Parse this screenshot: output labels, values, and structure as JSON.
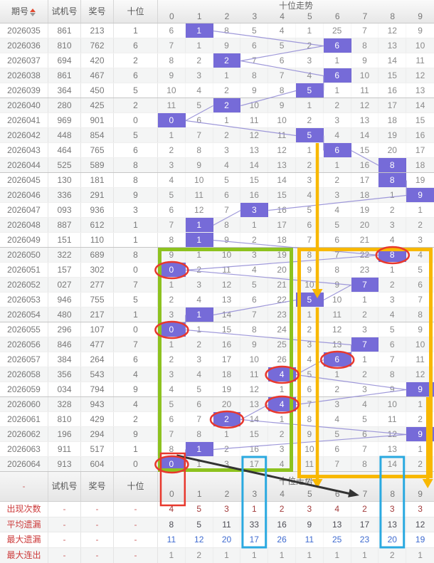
{
  "header": {
    "col_period": "期号",
    "col_test": "试机号",
    "col_prize": "奖号",
    "col_tens": "十位",
    "trend_title": "十位走势",
    "trend_cols": [
      "0",
      "1",
      "2",
      "3",
      "4",
      "5",
      "6",
      "7",
      "8",
      "9"
    ]
  },
  "summary_header": {
    "corner": "-",
    "col_test": "试机号",
    "col_prize": "奖号",
    "col_tens": "十位",
    "trend_title": "十位走势"
  },
  "chart_data": {
    "type": "table",
    "title": "十位走势",
    "columns": [
      "期号",
      "试机号",
      "奖号",
      "十位",
      "0",
      "1",
      "2",
      "3",
      "4",
      "5",
      "6",
      "7",
      "8",
      "9"
    ],
    "rows": [
      {
        "period": "2026035",
        "test": "861",
        "prize": "213",
        "tens": 1,
        "cells": [
          6,
          1,
          8,
          5,
          4,
          1,
          25,
          7,
          12,
          9
        ]
      },
      {
        "period": "2026036",
        "test": "810",
        "prize": "762",
        "tens": 6,
        "cells": [
          7,
          1,
          9,
          6,
          5,
          2,
          6,
          8,
          13,
          10
        ]
      },
      {
        "period": "2026037",
        "test": "694",
        "prize": "420",
        "tens": 2,
        "cells": [
          8,
          2,
          2,
          7,
          6,
          3,
          1,
          9,
          14,
          11
        ]
      },
      {
        "period": "2026038",
        "test": "861",
        "prize": "467",
        "tens": 6,
        "cells": [
          9,
          3,
          1,
          8,
          7,
          4,
          6,
          10,
          15,
          12
        ]
      },
      {
        "period": "2026039",
        "test": "364",
        "prize": "450",
        "tens": 5,
        "cells": [
          10,
          4,
          2,
          9,
          8,
          5,
          1,
          11,
          16,
          13
        ]
      },
      {
        "period": "2026040",
        "test": "280",
        "prize": "425",
        "tens": 2,
        "cells": [
          11,
          5,
          2,
          10,
          9,
          1,
          2,
          12,
          17,
          14
        ]
      },
      {
        "period": "2026041",
        "test": "969",
        "prize": "901",
        "tens": 0,
        "cells": [
          0,
          6,
          1,
          11,
          10,
          2,
          3,
          13,
          18,
          15
        ]
      },
      {
        "period": "2026042",
        "test": "448",
        "prize": "854",
        "tens": 5,
        "cells": [
          1,
          7,
          2,
          12,
          11,
          5,
          4,
          14,
          19,
          16
        ]
      },
      {
        "period": "2026043",
        "test": "464",
        "prize": "765",
        "tens": 6,
        "cells": [
          2,
          8,
          3,
          13,
          12,
          1,
          6,
          15,
          20,
          17
        ]
      },
      {
        "period": "2026044",
        "test": "525",
        "prize": "589",
        "tens": 8,
        "cells": [
          3,
          9,
          4,
          14,
          13,
          2,
          1,
          16,
          8,
          18
        ]
      },
      {
        "period": "2026045",
        "test": "130",
        "prize": "181",
        "tens": 8,
        "cells": [
          4,
          10,
          5,
          15,
          14,
          3,
          2,
          17,
          8,
          19
        ]
      },
      {
        "period": "2026046",
        "test": "336",
        "prize": "291",
        "tens": 9,
        "cells": [
          5,
          11,
          6,
          16,
          15,
          4,
          3,
          18,
          1,
          9
        ]
      },
      {
        "period": "2026047",
        "test": "093",
        "prize": "936",
        "tens": 3,
        "cells": [
          6,
          12,
          7,
          3,
          16,
          5,
          4,
          19,
          2,
          1
        ]
      },
      {
        "period": "2026048",
        "test": "887",
        "prize": "612",
        "tens": 1,
        "cells": [
          7,
          1,
          8,
          1,
          17,
          6,
          5,
          20,
          3,
          2
        ]
      },
      {
        "period": "2026049",
        "test": "151",
        "prize": "110",
        "tens": 1,
        "cells": [
          8,
          1,
          9,
          2,
          18,
          7,
          6,
          21,
          4,
          3
        ]
      },
      {
        "period": "2026050",
        "test": "322",
        "prize": "689",
        "tens": 8,
        "cells": [
          9,
          1,
          10,
          3,
          19,
          8,
          7,
          22,
          8,
          4
        ]
      },
      {
        "period": "2026051",
        "test": "157",
        "prize": "302",
        "tens": 0,
        "cells": [
          0,
          2,
          11,
          4,
          20,
          9,
          8,
          23,
          1,
          5
        ]
      },
      {
        "period": "2026052",
        "test": "027",
        "prize": "277",
        "tens": 7,
        "cells": [
          1,
          3,
          12,
          5,
          21,
          10,
          9,
          7,
          2,
          6
        ]
      },
      {
        "period": "2026053",
        "test": "946",
        "prize": "755",
        "tens": 5,
        "cells": [
          2,
          4,
          13,
          6,
          22,
          5,
          10,
          1,
          3,
          7
        ]
      },
      {
        "period": "2026054",
        "test": "480",
        "prize": "217",
        "tens": 1,
        "cells": [
          3,
          1,
          14,
          7,
          23,
          1,
          11,
          2,
          4,
          8
        ]
      },
      {
        "period": "2026055",
        "test": "296",
        "prize": "107",
        "tens": 0,
        "cells": [
          0,
          1,
          15,
          8,
          24,
          2,
          12,
          3,
          5,
          9
        ]
      },
      {
        "period": "2026056",
        "test": "846",
        "prize": "477",
        "tens": 7,
        "cells": [
          1,
          2,
          16,
          9,
          25,
          3,
          13,
          7,
          6,
          10
        ]
      },
      {
        "period": "2026057",
        "test": "384",
        "prize": "264",
        "tens": 6,
        "cells": [
          2,
          3,
          17,
          10,
          26,
          4,
          6,
          1,
          7,
          11
        ]
      },
      {
        "period": "2026058",
        "test": "356",
        "prize": "543",
        "tens": 4,
        "cells": [
          3,
          4,
          18,
          11,
          4,
          5,
          1,
          2,
          8,
          12
        ]
      },
      {
        "period": "2026059",
        "test": "034",
        "prize": "794",
        "tens": 9,
        "cells": [
          4,
          5,
          19,
          12,
          1,
          6,
          2,
          3,
          9,
          9
        ]
      },
      {
        "period": "2026060",
        "test": "328",
        "prize": "943",
        "tens": 4,
        "cells": [
          5,
          6,
          20,
          13,
          4,
          7,
          3,
          4,
          10,
          1
        ]
      },
      {
        "period": "2026061",
        "test": "810",
        "prize": "429",
        "tens": 2,
        "cells": [
          6,
          7,
          2,
          14,
          1,
          8,
          4,
          5,
          11,
          2
        ]
      },
      {
        "period": "2026062",
        "test": "196",
        "prize": "294",
        "tens": 9,
        "cells": [
          7,
          8,
          1,
          15,
          2,
          9,
          5,
          6,
          12,
          9
        ]
      },
      {
        "period": "2026063",
        "test": "911",
        "prize": "517",
        "tens": 1,
        "cells": [
          8,
          1,
          2,
          16,
          3,
          10,
          6,
          7,
          13,
          1
        ]
      },
      {
        "period": "2026064",
        "test": "913",
        "prize": "604",
        "tens": 0,
        "cells": [
          0,
          1,
          3,
          17,
          4,
          11,
          7,
          8,
          14,
          2
        ]
      }
    ],
    "summary_rows": [
      {
        "label": "出现次数",
        "dash": "-",
        "values": [
          4,
          5,
          3,
          1,
          2,
          3,
          4,
          2,
          3,
          3
        ],
        "color": "#a23b3b"
      },
      {
        "label": "平均遗漏",
        "dash": "-",
        "values": [
          8,
          5,
          11,
          33,
          16,
          9,
          13,
          17,
          13,
          12
        ],
        "color": "#4d4d55"
      },
      {
        "label": "最大遗漏",
        "dash": "-",
        "values": [
          11,
          12,
          20,
          17,
          26,
          11,
          25,
          23,
          20,
          19
        ],
        "color": "#3f6bd0"
      },
      {
        "label": "最大连出",
        "dash": "-",
        "values": [
          1,
          2,
          1,
          1,
          1,
          1,
          1,
          1,
          2,
          1
        ],
        "color": "#8a8a8a"
      }
    ]
  },
  "annotations": {
    "colors": {
      "purple_hit": "#766bd8",
      "trend_line": "#958ed6",
      "green": "#8dc21f",
      "gold": "#f8b800",
      "red": "#e8382d",
      "blue": "#2aa9e0",
      "black": "#333333"
    },
    "green_box": {
      "col_start": 0,
      "col_end": 4,
      "row_start": 15,
      "row_end": 29
    },
    "gold_box": {
      "col_start": 5,
      "col_end": 9,
      "row_start": 15,
      "row_end": 29
    },
    "red_circle_cells": [
      [
        15,
        8
      ],
      [
        16,
        0
      ],
      [
        20,
        0
      ],
      [
        22,
        6
      ],
      [
        23,
        4
      ],
      [
        25,
        4
      ],
      [
        26,
        2
      ],
      [
        29,
        0
      ]
    ],
    "red_box_col": 0,
    "blue_box_cols": [
      3,
      8
    ],
    "gold_arrows": [
      {
        "col": 5,
        "from_after_row": 7,
        "tip_at_row": 18
      },
      {
        "col": 5,
        "from_after_row": 18,
        "tip": "summary_header"
      },
      {
        "col": 9,
        "from_after_row": 24,
        "tip": "summary_header"
      }
    ],
    "black_arrow": {
      "from_cell": [
        29,
        0
      ],
      "to_summary_col": 7
    }
  }
}
